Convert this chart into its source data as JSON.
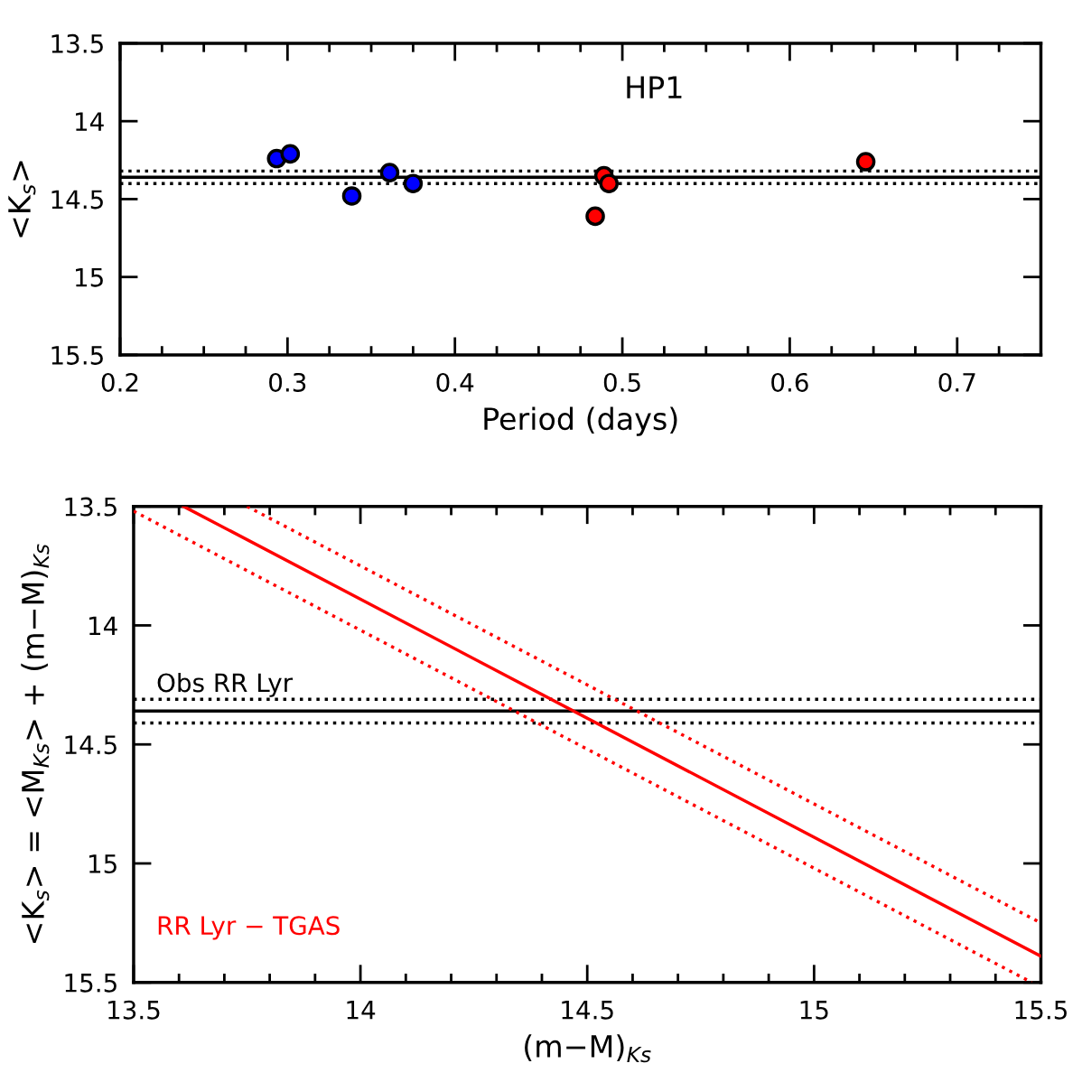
{
  "chart_data": [
    {
      "type": "scatter",
      "title": null,
      "xlabel": "Period (days)",
      "ylabel": "<K$_{s}$>",
      "annotations": [
        "HP1"
      ],
      "series": [
        {
          "color": "#0000ff",
          "x": [
            0.2935,
            0.3016,
            0.3384,
            0.361,
            0.375
          ],
          "values": [
            14.24,
            14.21,
            14.48,
            14.33,
            14.4
          ]
        },
        {
          "color": "#ff0000",
          "x": [
            0.4838,
            0.489,
            0.492,
            0.6454
          ],
          "values": [
            14.61,
            14.35,
            14.4,
            14.26
          ]
        }
      ],
      "marker": "circle",
      "xlim": [
        0.2,
        0.75
      ],
      "xticks": [
        0.2,
        0.3,
        0.4,
        0.5,
        0.6,
        0.7
      ],
      "ylim": [
        15.5,
        13.5
      ],
      "yticks": [
        13.5,
        14,
        14.5,
        15,
        15.5
      ],
      "grid": false,
      "legend": false,
      "ref_lines": [
        {
          "axis": "y",
          "value": 14.36,
          "color": "#000000",
          "line_style": "solid"
        },
        {
          "axis": "y",
          "value": 14.32,
          "color": "#000000",
          "line_style": "dotted"
        },
        {
          "axis": "y",
          "value": 14.4,
          "color": "#000000",
          "line_style": "dotted"
        }
      ]
    },
    {
      "type": "line",
      "xlabel": "(m−M)$_{Ks}$",
      "ylabel": "<K$_{s}$> = <M$_{Ks}$> + (m−M)$_{Ks}$",
      "annotations": [
        "Obs RR Lyr",
        "RR Lyr − TGAS"
      ],
      "series": [
        {
          "color": "#ff0000",
          "line_style": "solid",
          "x": [
            13.61,
            15.5
          ],
          "values": [
            13.5,
            15.39
          ]
        },
        {
          "color": "#ff0000",
          "line_style": "dotted",
          "x": [
            13.5,
            15.48
          ],
          "values": [
            13.52,
            15.5
          ]
        },
        {
          "color": "#ff0000",
          "line_style": "dotted",
          "x": [
            13.75,
            15.5
          ],
          "values": [
            13.5,
            15.25
          ]
        }
      ],
      "marker": "none",
      "xlim": [
        13.5,
        15.5
      ],
      "xticks": [
        13.5,
        14,
        14.5,
        15,
        15.5
      ],
      "ylim": [
        15.5,
        13.5
      ],
      "yticks": [
        13.5,
        14,
        14.5,
        15,
        15.5
      ],
      "grid": false,
      "legend": false,
      "ref_lines": [
        {
          "axis": "y",
          "value": 14.36,
          "color": "#000000",
          "line_style": "solid"
        },
        {
          "axis": "y",
          "value": 14.31,
          "color": "#000000",
          "line_style": "dotted"
        },
        {
          "axis": "y",
          "value": 14.41,
          "color": "#000000",
          "line_style": "dotted"
        }
      ]
    }
  ]
}
